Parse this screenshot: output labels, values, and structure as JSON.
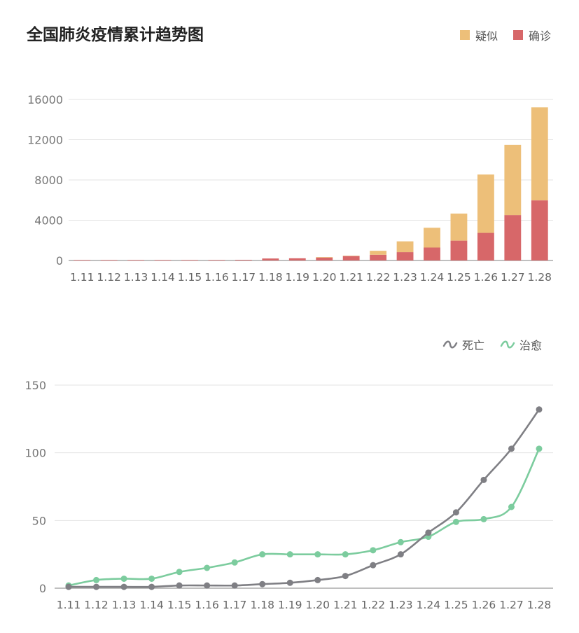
{
  "chart_data": [
    {
      "type": "bar",
      "stacked": true,
      "title": "全国肺炎疫情累计趋势图",
      "categories": [
        "1.11",
        "1.12",
        "1.13",
        "1.14",
        "1.15",
        "1.16",
        "1.17",
        "1.18",
        "1.19",
        "1.20",
        "1.21",
        "1.22",
        "1.23",
        "1.24",
        "1.25",
        "1.26",
        "1.27",
        "1.28"
      ],
      "series": [
        {
          "name": "确诊",
          "color": "#d76769",
          "values": [
            41,
            41,
            41,
            41,
            41,
            45,
            62,
            198,
            218,
            291,
            440,
            571,
            830,
            1287,
            1975,
            2744,
            4515,
            5974
          ]
        },
        {
          "name": "疑似",
          "color": "#edbf79",
          "values": [
            0,
            0,
            0,
            0,
            0,
            0,
            0,
            0,
            0,
            54,
            37,
            393,
            1072,
            1965,
            2684,
            5794,
            6973,
            9239
          ]
        }
      ],
      "yticks": [
        0,
        4000,
        8000,
        12000,
        16000
      ],
      "ylim": [
        0,
        16000
      ],
      "legend": [
        "疑似",
        "确诊"
      ],
      "legend_position": "top-right"
    },
    {
      "type": "line",
      "categories": [
        "1.11",
        "1.12",
        "1.13",
        "1.14",
        "1.15",
        "1.16",
        "1.17",
        "1.18",
        "1.19",
        "1.20",
        "1.21",
        "1.22",
        "1.23",
        "1.24",
        "1.25",
        "1.26",
        "1.27",
        "1.28"
      ],
      "series": [
        {
          "name": "死亡",
          "color": "#7f7f84",
          "values": [
            1,
            1,
            1,
            1,
            2,
            2,
            2,
            3,
            4,
            6,
            9,
            17,
            25,
            41,
            56,
            80,
            103,
            132
          ]
        },
        {
          "name": "治愈",
          "color": "#7ccc9e",
          "values": [
            2,
            6,
            7,
            7,
            12,
            15,
            19,
            25,
            25,
            25,
            25,
            28,
            34,
            38,
            49,
            51,
            60,
            103
          ]
        }
      ],
      "yticks": [
        0,
        50,
        100,
        150
      ],
      "ylim": [
        0,
        150
      ],
      "legend": [
        "死亡",
        "治愈"
      ],
      "legend_position": "top-right"
    }
  ]
}
